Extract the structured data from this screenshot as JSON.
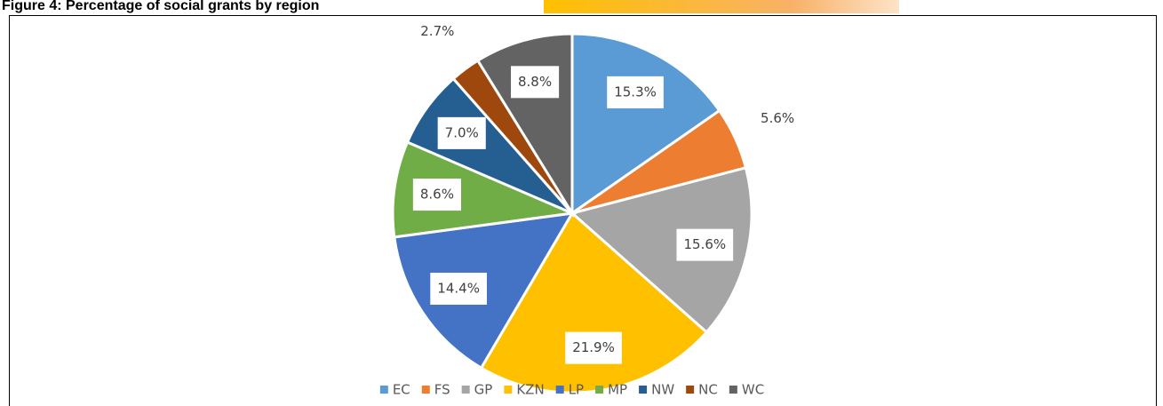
{
  "chart_data": {
    "type": "pie",
    "title": "Figure 4: Percentage of social grants by region",
    "categories": [
      "EC",
      "FS",
      "GP",
      "KZN",
      "LP",
      "MP",
      "NW",
      "NC",
      "WC"
    ],
    "values": [
      15.3,
      5.6,
      15.6,
      21.9,
      14.4,
      8.6,
      7.0,
      2.7,
      8.8
    ],
    "value_labels": [
      "15.3%",
      "5.6%",
      "15.6%",
      "21.9%",
      "14.4%",
      "8.6%",
      "7.0%",
      "2.7%",
      "8.8%"
    ],
    "colors": [
      "#5b9bd5",
      "#ed7d31",
      "#a5a5a5",
      "#ffc000",
      "#4472c4",
      "#70ad47",
      "#255e91",
      "#9e480e",
      "#636363"
    ],
    "legend": "bottom"
  }
}
